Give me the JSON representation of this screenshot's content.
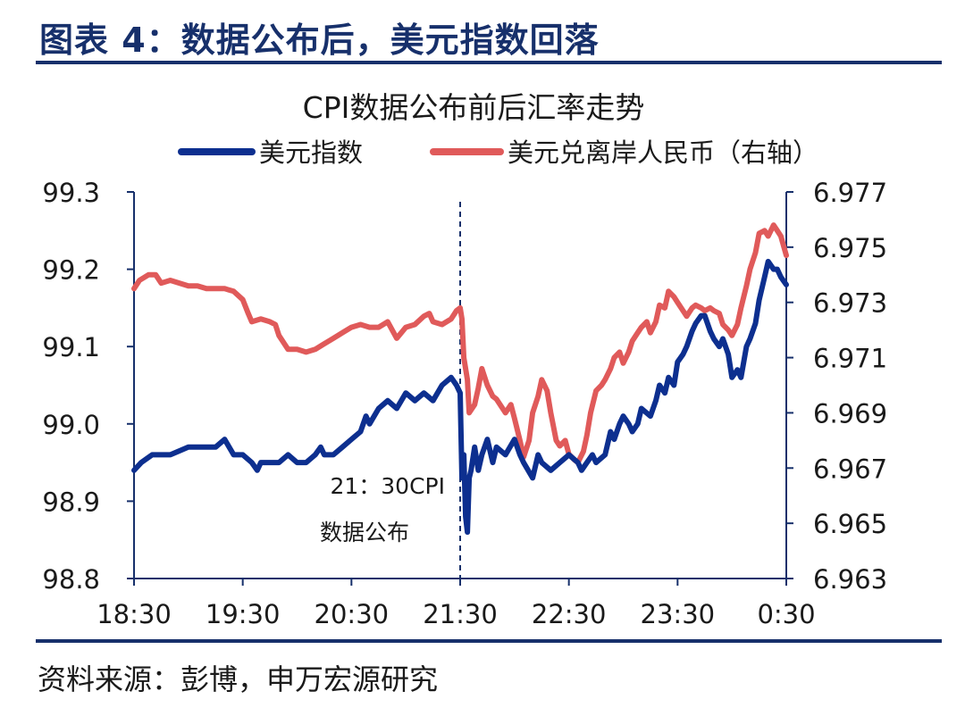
{
  "figure": {
    "title": "图表 4：数据公布后，美元指数回落",
    "source": "资料来源：彭博，申万宏源研究"
  },
  "chart_data": {
    "type": "line",
    "title": "CPI数据公布前后汇率走势",
    "x_ticks": [
      "18:30",
      "19:30",
      "20:30",
      "21:30",
      "22:30",
      "23:30",
      "0:30"
    ],
    "x_range_minutes": [
      0,
      360
    ],
    "y_left": {
      "ticks": [
        "99.3",
        "99.2",
        "99.1",
        "99.0",
        "98.9",
        "98.8"
      ],
      "range": [
        98.8,
        99.3
      ]
    },
    "y_right": {
      "ticks": [
        "6.977",
        "6.975",
        "6.973",
        "6.971",
        "6.969",
        "6.967",
        "6.965",
        "6.963"
      ],
      "range": [
        6.963,
        6.977
      ]
    },
    "grid": false,
    "legend_position": "top",
    "event_line": {
      "x": 180,
      "label_line1": "21：30CPI",
      "label_line2": "数据公布"
    },
    "series": [
      {
        "name": "美元指数",
        "axis": "left",
        "color": "#0d2f8f",
        "points": [
          [
            0,
            98.94
          ],
          [
            4,
            98.95
          ],
          [
            10,
            98.96
          ],
          [
            20,
            98.96
          ],
          [
            30,
            98.97
          ],
          [
            40,
            98.97
          ],
          [
            45,
            98.97
          ],
          [
            50,
            98.98
          ],
          [
            55,
            98.96
          ],
          [
            60,
            98.96
          ],
          [
            65,
            98.95
          ],
          [
            68,
            98.94
          ],
          [
            70,
            98.95
          ],
          [
            75,
            98.95
          ],
          [
            80,
            98.95
          ],
          [
            85,
            98.96
          ],
          [
            90,
            98.95
          ],
          [
            95,
            98.95
          ],
          [
            100,
            98.96
          ],
          [
            103,
            98.97
          ],
          [
            105,
            98.96
          ],
          [
            110,
            98.96
          ],
          [
            115,
            98.97
          ],
          [
            120,
            98.98
          ],
          [
            125,
            98.99
          ],
          [
            128,
            99.01
          ],
          [
            130,
            99.0
          ],
          [
            135,
            99.02
          ],
          [
            140,
            99.03
          ],
          [
            145,
            99.02
          ],
          [
            150,
            99.04
          ],
          [
            155,
            99.03
          ],
          [
            160,
            99.04
          ],
          [
            165,
            99.03
          ],
          [
            170,
            99.05
          ],
          [
            175,
            99.06
          ],
          [
            178,
            99.05
          ],
          [
            180,
            99.04
          ],
          [
            181,
            98.93
          ],
          [
            182,
            98.96
          ],
          [
            183,
            98.88
          ],
          [
            184,
            98.86
          ],
          [
            185,
            98.93
          ],
          [
            186,
            98.94
          ],
          [
            188,
            98.97
          ],
          [
            190,
            98.94
          ],
          [
            192,
            98.96
          ],
          [
            195,
            98.98
          ],
          [
            198,
            98.95
          ],
          [
            200,
            98.97
          ],
          [
            205,
            98.96
          ],
          [
            210,
            98.98
          ],
          [
            213,
            98.96
          ],
          [
            215,
            98.95
          ],
          [
            220,
            98.93
          ],
          [
            223,
            98.96
          ],
          [
            225,
            98.95
          ],
          [
            230,
            98.94
          ],
          [
            235,
            98.95
          ],
          [
            240,
            98.96
          ],
          [
            245,
            98.95
          ],
          [
            247,
            98.94
          ],
          [
            250,
            98.95
          ],
          [
            253,
            98.96
          ],
          [
            255,
            98.95
          ],
          [
            260,
            98.96
          ],
          [
            263,
            98.99
          ],
          [
            265,
            98.98
          ],
          [
            268,
            99.0
          ],
          [
            270,
            99.01
          ],
          [
            273,
            99.0
          ],
          [
            275,
            98.99
          ],
          [
            278,
            99.0
          ],
          [
            280,
            99.02
          ],
          [
            285,
            99.01
          ],
          [
            288,
            99.03
          ],
          [
            290,
            99.05
          ],
          [
            293,
            99.04
          ],
          [
            295,
            99.06
          ],
          [
            298,
            99.05
          ],
          [
            300,
            99.08
          ],
          [
            303,
            99.09
          ],
          [
            305,
            99.1
          ],
          [
            308,
            99.12
          ],
          [
            310,
            99.13
          ],
          [
            313,
            99.14
          ],
          [
            315,
            99.14
          ],
          [
            318,
            99.12
          ],
          [
            320,
            99.11
          ],
          [
            323,
            99.1
          ],
          [
            325,
            99.11
          ],
          [
            328,
            99.09
          ],
          [
            330,
            99.06
          ],
          [
            333,
            99.07
          ],
          [
            335,
            99.06
          ],
          [
            338,
            99.1
          ],
          [
            340,
            99.11
          ],
          [
            343,
            99.13
          ],
          [
            345,
            99.16
          ],
          [
            348,
            99.19
          ],
          [
            350,
            99.21
          ],
          [
            353,
            99.2
          ],
          [
            355,
            99.2
          ],
          [
            357,
            99.19
          ],
          [
            360,
            99.18
          ]
        ]
      },
      {
        "name": "美元兑离岸人民币（右轴）",
        "axis": "right",
        "color": "#e05a5a",
        "points": [
          [
            0,
            6.9735
          ],
          [
            3,
            6.9738
          ],
          [
            8,
            6.974
          ],
          [
            12,
            6.974
          ],
          [
            15,
            6.9737
          ],
          [
            20,
            6.9738
          ],
          [
            25,
            6.9737
          ],
          [
            30,
            6.9736
          ],
          [
            35,
            6.9736
          ],
          [
            40,
            6.9735
          ],
          [
            45,
            6.9735
          ],
          [
            50,
            6.9735
          ],
          [
            55,
            6.9734
          ],
          [
            60,
            6.9731
          ],
          [
            63,
            6.9726
          ],
          [
            65,
            6.9723
          ],
          [
            70,
            6.9724
          ],
          [
            75,
            6.9723
          ],
          [
            78,
            6.9722
          ],
          [
            80,
            6.9718
          ],
          [
            83,
            6.9715
          ],
          [
            85,
            6.9713
          ],
          [
            90,
            6.9713
          ],
          [
            95,
            6.9712
          ],
          [
            100,
            6.9713
          ],
          [
            105,
            6.9715
          ],
          [
            110,
            6.9717
          ],
          [
            115,
            6.9719
          ],
          [
            120,
            6.9721
          ],
          [
            125,
            6.9722
          ],
          [
            130,
            6.9721
          ],
          [
            135,
            6.9721
          ],
          [
            140,
            6.9723
          ],
          [
            145,
            6.9717
          ],
          [
            150,
            6.9721
          ],
          [
            155,
            6.9722
          ],
          [
            160,
            6.9725
          ],
          [
            163,
            6.9726
          ],
          [
            165,
            6.9723
          ],
          [
            170,
            6.9722
          ],
          [
            175,
            6.9724
          ],
          [
            178,
            6.9727
          ],
          [
            180,
            6.9728
          ],
          [
            181,
            6.9724
          ],
          [
            182,
            6.971
          ],
          [
            184,
            6.9702
          ],
          [
            185,
            6.969
          ],
          [
            188,
            6.9693
          ],
          [
            190,
            6.9699
          ],
          [
            192,
            6.9706
          ],
          [
            195,
            6.97
          ],
          [
            198,
            6.9696
          ],
          [
            200,
            6.9695
          ],
          [
            205,
            6.969
          ],
          [
            208,
            6.9693
          ],
          [
            210,
            6.9688
          ],
          [
            213,
            6.968
          ],
          [
            215,
            6.9674
          ],
          [
            218,
            6.968
          ],
          [
            220,
            6.969
          ],
          [
            223,
            6.9696
          ],
          [
            225,
            6.9702
          ],
          [
            228,
            6.9698
          ],
          [
            230,
            6.969
          ],
          [
            233,
            6.968
          ],
          [
            235,
            6.9678
          ],
          [
            238,
            6.968
          ],
          [
            240,
            6.9675
          ],
          [
            243,
            6.9673
          ],
          [
            245,
            6.9672
          ],
          [
            248,
            6.9676
          ],
          [
            250,
            6.9682
          ],
          [
            252,
            6.969
          ],
          [
            255,
            6.9698
          ],
          [
            258,
            6.97
          ],
          [
            260,
            6.9702
          ],
          [
            263,
            6.9706
          ],
          [
            265,
            6.971
          ],
          [
            268,
            6.9712
          ],
          [
            270,
            6.9708
          ],
          [
            273,
            6.9712
          ],
          [
            275,
            6.9716
          ],
          [
            278,
            6.9719
          ],
          [
            280,
            6.9721
          ],
          [
            283,
            6.9723
          ],
          [
            285,
            6.9719
          ],
          [
            288,
            6.9723
          ],
          [
            290,
            6.9729
          ],
          [
            293,
            6.9728
          ],
          [
            295,
            6.9734
          ],
          [
            298,
            6.9732
          ],
          [
            300,
            6.973
          ],
          [
            303,
            6.9727
          ],
          [
            305,
            6.9725
          ],
          [
            308,
            6.9728
          ],
          [
            310,
            6.9729
          ],
          [
            313,
            6.9728
          ],
          [
            315,
            6.9727
          ],
          [
            318,
            6.9728
          ],
          [
            320,
            6.9727
          ],
          [
            323,
            6.9726
          ],
          [
            325,
            6.9722
          ],
          [
            328,
            6.972
          ],
          [
            330,
            6.9718
          ],
          [
            333,
            6.9722
          ],
          [
            335,
            6.9728
          ],
          [
            338,
            6.9736
          ],
          [
            340,
            6.9742
          ],
          [
            343,
            6.9748
          ],
          [
            345,
            6.9755
          ],
          [
            348,
            6.9756
          ],
          [
            350,
            6.9754
          ],
          [
            353,
            6.9758
          ],
          [
            355,
            6.9756
          ],
          [
            357,
            6.9754
          ],
          [
            360,
            6.9747
          ]
        ]
      }
    ]
  }
}
